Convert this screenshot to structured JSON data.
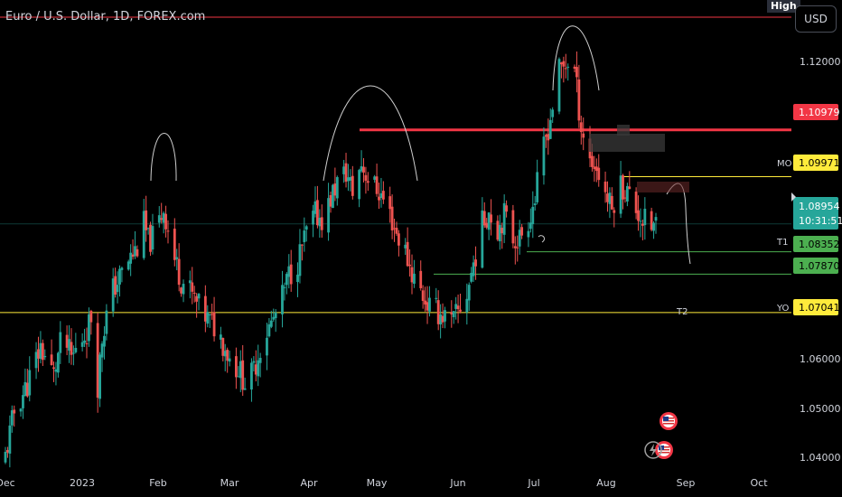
{
  "header": {
    "title": "Euro / U.S. Dollar, 1D, FOREX.com",
    "currency_button": "USD",
    "high_badge": "High"
  },
  "price_scale": {
    "ticks": [
      "1.12000",
      "1.06000",
      "1.05000",
      "1.04000"
    ],
    "badges": [
      {
        "label": "",
        "value": "1.10979",
        "color": "#f23645",
        "text_color": "#ffffff"
      },
      {
        "label": "MO",
        "value": "1.09971",
        "color": "#ffeb3b",
        "text_color": "#000000"
      },
      {
        "label": "",
        "value": "1.08954",
        "color": "#26a69a",
        "text_color": "#ffffff",
        "sub": "10:31:51"
      },
      {
        "label": "T1",
        "value": "1.08352",
        "color": "#4caf50",
        "text_color": "#000000"
      },
      {
        "label": "",
        "value": "1.07870",
        "color": "#4caf50",
        "text_color": "#000000"
      },
      {
        "label": "YO",
        "value": "1.07041",
        "color": "#ffeb3b",
        "text_color": "#000000"
      }
    ]
  },
  "time_axis": [
    "Dec",
    "2023",
    "Feb",
    "Mar",
    "Apr",
    "May",
    "Jun",
    "Jul",
    "Aug",
    "Sep",
    "Oct"
  ],
  "annotations": {
    "t2_label": "T2"
  },
  "colors": {
    "up": "#26a69a",
    "down": "#ef5350",
    "background": "#000000"
  },
  "chart_data": {
    "type": "candlestick",
    "symbol": "EURUSD",
    "interval": "1D",
    "ylim": [
      1.0365,
      1.1378
    ],
    "horizontal_levels": [
      {
        "name": "High",
        "y": 1.1341,
        "color": "#f23645"
      },
      {
        "name": "",
        "y": 1.10979,
        "color": "#f23645"
      },
      {
        "name": "MO",
        "y": 1.09971,
        "color": "#ffeb3b"
      },
      {
        "name": "",
        "y": 1.08954,
        "color": "#26a69a"
      },
      {
        "name": "T1",
        "y": 1.08352,
        "color": "#4caf50"
      },
      {
        "name": "",
        "y": 1.0787,
        "color": "#4caf50"
      },
      {
        "name": "YO",
        "y": 1.07041,
        "color": "#ffeb3b"
      }
    ],
    "close_path": [
      [
        0,
        1.0395
      ],
      [
        4,
        1.049
      ],
      [
        10,
        1.055
      ],
      [
        16,
        1.063
      ],
      [
        22,
        1.057
      ],
      [
        26,
        1.0655
      ],
      [
        30,
        1.0605
      ],
      [
        34,
        1.064
      ],
      [
        37,
        1.0665
      ],
      [
        40,
        1.071
      ],
      [
        42,
        1.055
      ],
      [
        44,
        1.065
      ],
      [
        48,
        1.0745
      ],
      [
        52,
        1.078
      ],
      [
        56,
        1.0815
      ],
      [
        60,
        1.0845
      ],
      [
        63,
        1.0895
      ],
      [
        65,
        1.0858
      ],
      [
        68,
        1.087
      ],
      [
        72,
        1.093
      ],
      [
        76,
        1.0835
      ],
      [
        80,
        1.0775
      ],
      [
        84,
        1.075
      ],
      [
        88,
        1.0715
      ],
      [
        92,
        1.069
      ],
      [
        96,
        1.067
      ],
      [
        100,
        1.063
      ],
      [
        103,
        1.0595
      ],
      [
        106,
        1.0585
      ],
      [
        110,
        1.0545
      ],
      [
        113,
        1.058
      ],
      [
        117,
        1.0645
      ],
      [
        121,
        1.068
      ],
      [
        125,
        1.072
      ],
      [
        129,
        1.0785
      ],
      [
        133,
        1.0815
      ],
      [
        137,
        1.0875
      ],
      [
        141,
        1.0915
      ],
      [
        145,
        1.0905
      ],
      [
        148,
        1.095
      ],
      [
        151,
        1.0985
      ],
      [
        155,
        1.1005
      ],
      [
        158,
        1.0965
      ],
      [
        162,
        1.1025
      ],
      [
        166,
        1.0985
      ],
      [
        170,
        1.0965
      ],
      [
        174,
        1.093
      ],
      [
        178,
        1.0875
      ],
      [
        182,
        1.0835
      ],
      [
        185,
        1.079
      ],
      [
        189,
        1.075
      ],
      [
        193,
        1.0715
      ],
      [
        197,
        1.0705
      ],
      [
        200,
        1.0695
      ],
      [
        203,
        1.068
      ],
      [
        206,
        1.0705
      ],
      [
        210,
        1.0745
      ],
      [
        213,
        1.081
      ],
      [
        217,
        1.0895
      ],
      [
        220,
        1.0925
      ],
      [
        224,
        1.0885
      ],
      [
        227,
        1.0915
      ],
      [
        231,
        1.0865
      ],
      [
        234,
        1.0865
      ],
      [
        238,
        1.0905
      ],
      [
        241,
        1.095
      ],
      [
        245,
        1.106
      ],
      [
        248,
        1.1125
      ],
      [
        252,
        1.1225
      ],
      [
        256,
        1.1245
      ],
      [
        259,
        1.1225
      ],
      [
        262,
        1.1105
      ],
      [
        266,
        1.1035
      ],
      [
        269,
        1.1015
      ],
      [
        272,
        1.0975
      ],
      [
        276,
        1.0925
      ],
      [
        279,
        1.0985
      ],
      [
        283,
        1.0965
      ],
      [
        286,
        1.0935
      ],
      [
        290,
        1.0905
      ],
      [
        293,
        1.0885
      ],
      [
        296,
        1.0895
      ]
    ]
  }
}
